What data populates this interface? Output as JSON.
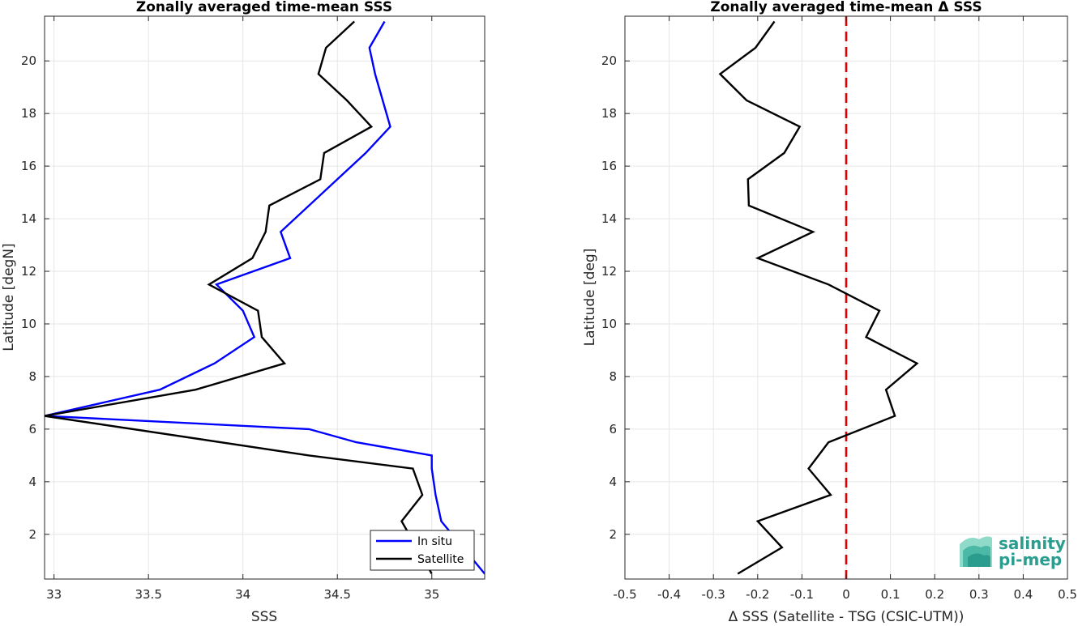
{
  "chart_data": [
    {
      "type": "line",
      "title": "Zonally averaged time-mean SSS",
      "xlabel": "SSS",
      "ylabel": "Latitude [degN]",
      "xlim": [
        32.95,
        35.28
      ],
      "ylim": [
        0.3,
        21.7
      ],
      "xticks": [
        33,
        33.5,
        34,
        34.5,
        35
      ],
      "yticks": [
        2,
        4,
        6,
        8,
        10,
        12,
        14,
        16,
        18,
        20
      ],
      "grid": true,
      "legend": "bottom-right",
      "series": [
        {
          "name": "In situ",
          "color": "#0000ff",
          "x": [
            35.28,
            35.05,
            35.02,
            35.0,
            35.0,
            34.6,
            34.35,
            32.95,
            33.56,
            33.85,
            34.06,
            34.0,
            33.86,
            34.25,
            34.2,
            34.35,
            34.5,
            34.65,
            34.78,
            34.7,
            34.67,
            34.75
          ],
          "y": [
            0.5,
            2.5,
            3.5,
            4.5,
            5.0,
            5.5,
            6.0,
            6.5,
            7.5,
            8.5,
            9.5,
            10.5,
            11.5,
            12.5,
            13.5,
            14.5,
            15.5,
            16.5,
            17.5,
            19.5,
            20.5,
            21.5
          ]
        },
        {
          "name": "Satellite",
          "color": "#000000",
          "x": [
            35.0,
            34.84,
            34.95,
            34.9,
            34.35,
            32.95,
            33.75,
            34.22,
            34.1,
            34.08,
            33.82,
            34.05,
            34.12,
            34.14,
            34.41,
            34.43,
            34.68,
            34.55,
            34.4,
            34.44,
            34.59
          ],
          "y": [
            0.5,
            2.5,
            3.5,
            4.5,
            5.0,
            6.5,
            7.5,
            8.5,
            9.5,
            10.5,
            11.5,
            12.5,
            13.5,
            14.5,
            15.5,
            16.5,
            17.5,
            18.5,
            19.5,
            20.5,
            21.5
          ]
        }
      ]
    },
    {
      "type": "line",
      "title": "Zonally averaged time-mean Δ SSS",
      "xlabel": "Δ SSS (Satellite - TSG (CSIC-UTM))",
      "ylabel": "Latitude [deg]",
      "xlim": [
        -0.5,
        0.5
      ],
      "ylim": [
        0.3,
        21.7
      ],
      "xticks": [
        -0.5,
        -0.4,
        -0.3,
        -0.2,
        -0.1,
        0,
        0.1,
        0.2,
        0.3,
        0.4,
        0.5
      ],
      "xtick_labels": [
        "-0.5",
        "-0.4",
        "-0.3",
        "-0.2",
        "-0.1",
        "0",
        "0.1",
        "0.2",
        "0.3",
        "0.4",
        "0.5"
      ],
      "yticks": [
        2,
        4,
        6,
        8,
        10,
        12,
        14,
        16,
        18,
        20
      ],
      "grid": true,
      "reference_line": {
        "x": 0,
        "color": "#dd0000",
        "style": "dashed"
      },
      "series": [
        {
          "color": "#000000",
          "x": [
            -0.245,
            -0.145,
            -0.2,
            -0.035,
            -0.085,
            -0.04,
            0.11,
            0.09,
            0.16,
            0.045,
            0.075,
            -0.04,
            -0.2,
            -0.075,
            -0.22,
            -0.222,
            -0.14,
            -0.105,
            -0.225,
            -0.285,
            -0.205,
            -0.162
          ],
          "y": [
            0.5,
            1.5,
            2.5,
            3.5,
            4.5,
            5.5,
            6.5,
            7.5,
            8.5,
            9.5,
            10.5,
            11.5,
            12.5,
            13.5,
            14.5,
            15.5,
            16.5,
            17.5,
            18.5,
            19.5,
            20.5,
            21.5
          ]
        }
      ]
    }
  ],
  "logo": {
    "line1": "salinity",
    "line2": "pi-mep"
  },
  "colors": {
    "grid": "#e6e6e6",
    "axis": "#262626",
    "logo": "#2a9d8f"
  }
}
